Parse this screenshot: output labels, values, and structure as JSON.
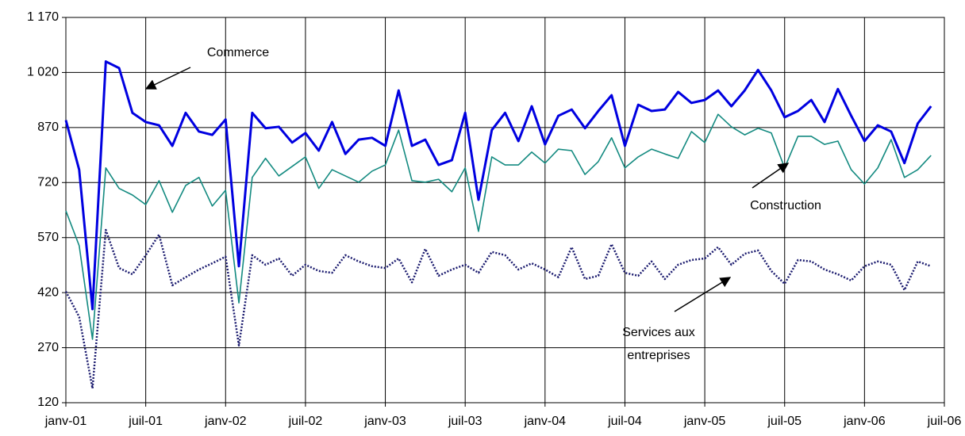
{
  "chart_data": {
    "type": "line",
    "x": [
      0,
      1,
      2,
      3,
      4,
      5,
      6,
      7,
      8,
      9,
      10,
      11,
      12,
      13,
      14,
      15,
      16,
      17,
      18,
      19,
      20,
      21,
      22,
      23,
      24,
      25,
      26,
      27,
      28,
      29,
      30,
      31,
      32,
      33,
      34,
      35,
      36,
      37,
      38,
      39,
      40,
      41,
      42,
      43,
      44,
      45,
      46,
      47,
      48,
      49,
      50,
      51,
      52,
      53,
      54,
      55,
      56,
      57,
      58,
      59,
      60,
      61,
      62,
      63,
      64,
      65
    ],
    "xlim": [
      0,
      66
    ],
    "xticks": [
      {
        "value": 0,
        "label": "janv-01"
      },
      {
        "value": 6,
        "label": "juil-01"
      },
      {
        "value": 12,
        "label": "janv-02"
      },
      {
        "value": 18,
        "label": "juil-02"
      },
      {
        "value": 24,
        "label": "janv-03"
      },
      {
        "value": 30,
        "label": "juil-03"
      },
      {
        "value": 36,
        "label": "janv-04"
      },
      {
        "value": 42,
        "label": "juil-04"
      },
      {
        "value": 48,
        "label": "janv-05"
      },
      {
        "value": 54,
        "label": "juil-05"
      },
      {
        "value": 60,
        "label": "janv-06"
      },
      {
        "value": 66,
        "label": "juil-06"
      }
    ],
    "ylim": [
      120,
      1170
    ],
    "yticks": [
      120,
      270,
      420,
      570,
      720,
      870,
      {
        "value": 1020,
        "label": "1 020"
      },
      {
        "value": 1170,
        "label": "1 170"
      }
    ],
    "grid": true,
    "series": [
      {
        "name": "Commerce",
        "color": "#0000e0",
        "values": [
          890,
          755,
          375,
          1050,
          1032,
          910,
          885,
          876,
          820,
          910,
          859,
          850,
          892,
          492,
          910,
          868,
          872,
          829,
          855,
          807,
          885,
          798,
          837,
          842,
          820,
          971,
          820,
          837,
          768,
          781,
          910,
          673,
          863,
          910,
          833,
          928,
          824,
          902,
          919,
          868,
          915,
          958,
          820,
          932,
          915,
          919,
          967,
          937,
          945,
          971,
          928,
          971,
          1027,
          971,
          898,
          915,
          945,
          885,
          975,
          902,
          833,
          876,
          859,
          773,
          881,
          928
        ]
      },
      {
        "name": "Construction",
        "color": "#138a80",
        "values": [
          643,
          548,
          293,
          760,
          704,
          686,
          660,
          725,
          639,
          712,
          734,
          656,
          699,
          392,
          734,
          786,
          738,
          764,
          790,
          704,
          755,
          738,
          721,
          751,
          768,
          863,
          725,
          721,
          729,
          695,
          760,
          587,
          790,
          768,
          768,
          803,
          773,
          811,
          807,
          742,
          777,
          842,
          760,
          790,
          811,
          798,
          786,
          859,
          829,
          906,
          872,
          850,
          868,
          855,
          760,
          846,
          846,
          824,
          833,
          755,
          716,
          760,
          837,
          734,
          755,
          794
        ]
      },
      {
        "name": "Services aux entreprises",
        "color": "#1a1a6e",
        "values": [
          423,
          354,
          159,
          591,
          487,
          470,
          522,
          578,
          440,
          462,
          483,
          500,
          518,
          276,
          522,
          496,
          513,
          466,
          496,
          479,
          474,
          522,
          505,
          492,
          487,
          513,
          448,
          539,
          466,
          483,
          496,
          474,
          531,
          522,
          483,
          500,
          483,
          462,
          544,
          457,
          466,
          552,
          474,
          466,
          505,
          457,
          496,
          509,
          513,
          544,
          496,
          526,
          535,
          479,
          444,
          509,
          505,
          483,
          470,
          453,
          492,
          505,
          496,
          427,
          505,
          492
        ]
      }
    ],
    "annotations": [
      "Commerce",
      "Construction",
      "Services aux",
      "entreprises"
    ]
  }
}
